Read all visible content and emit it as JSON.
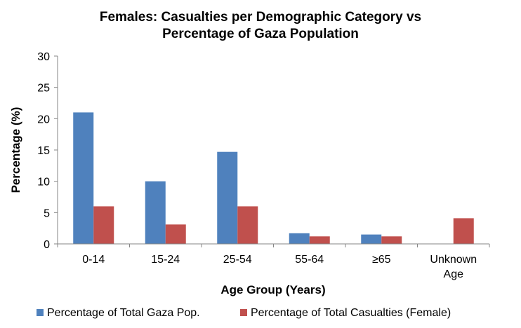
{
  "chart_data": {
    "type": "bar",
    "title": [
      "Females: Casualties per Demographic Category vs",
      "Percentage of Gaza Population"
    ],
    "xlabel": "Age Group (Years)",
    "ylabel": "Percentage (%)",
    "ylim": [
      0,
      30
    ],
    "yticks": [
      0,
      5,
      10,
      15,
      20,
      25,
      30
    ],
    "categories": [
      [
        "0-14"
      ],
      [
        "15-24"
      ],
      [
        "25-54"
      ],
      [
        "55-64"
      ],
      [
        "≥65"
      ],
      [
        "Unknown",
        "Age"
      ]
    ],
    "series": [
      {
        "name": "Percentage of Total Gaza Pop.",
        "color": "#4f81bd",
        "values": [
          21.0,
          10.0,
          14.7,
          1.7,
          1.5,
          0
        ]
      },
      {
        "name": "Percentage of Total Casualties (Female)",
        "color": "#c0504d",
        "values": [
          6.0,
          3.1,
          6.0,
          1.2,
          1.2,
          4.1
        ]
      }
    ],
    "grid": false,
    "legend": "bottom"
  }
}
